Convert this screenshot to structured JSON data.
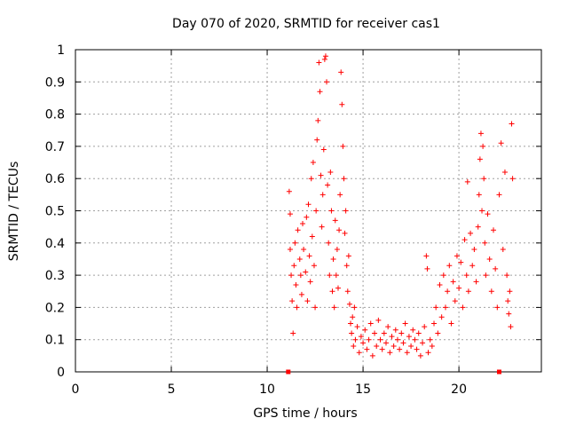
{
  "chart_data": {
    "type": "scatter",
    "title": "Day 070 of 2020, SRMTID for receiver cas1",
    "xlabel": "GPS time / hours",
    "ylabel": "SRMTID / TECUs",
    "xlim": [
      0,
      24.3
    ],
    "ylim": [
      0,
      1
    ],
    "x_ticks": [
      0,
      5,
      10,
      15,
      20
    ],
    "x_tick_labels": [
      "0",
      "5",
      "10",
      "15",
      "20"
    ],
    "y_ticks": [
      0,
      0.1,
      0.2,
      0.3,
      0.4,
      0.5,
      0.6,
      0.7,
      0.8,
      0.9,
      1
    ],
    "y_tick_labels": [
      "0",
      "0.1",
      "0.2",
      "0.3",
      "0.4",
      "0.5",
      "0.6",
      "0.7",
      "0.8",
      "0.9",
      "1"
    ],
    "grid": true,
    "marker": "plus",
    "color": "#ff0000",
    "series": [
      {
        "name": "cas1",
        "points": [
          [
            11.15,
            0.56
          ],
          [
            11.2,
            0.49
          ],
          [
            11.2,
            0.38
          ],
          [
            11.25,
            0.3
          ],
          [
            11.3,
            0.22
          ],
          [
            11.35,
            0.12
          ],
          [
            11.4,
            0.33
          ],
          [
            11.45,
            0.4
          ],
          [
            11.5,
            0.27
          ],
          [
            11.55,
            0.2
          ],
          [
            11.6,
            0.44
          ],
          [
            11.7,
            0.35
          ],
          [
            11.75,
            0.3
          ],
          [
            11.8,
            0.24
          ],
          [
            11.85,
            0.46
          ],
          [
            11.9,
            0.38
          ],
          [
            12.0,
            0.31
          ],
          [
            12.05,
            0.48
          ],
          [
            12.1,
            0.22
          ],
          [
            12.15,
            0.52
          ],
          [
            12.2,
            0.36
          ],
          [
            12.25,
            0.28
          ],
          [
            12.3,
            0.6
          ],
          [
            12.35,
            0.42
          ],
          [
            12.4,
            0.65
          ],
          [
            12.45,
            0.33
          ],
          [
            12.5,
            0.2
          ],
          [
            12.55,
            0.5
          ],
          [
            12.6,
            0.72
          ],
          [
            12.65,
            0.78
          ],
          [
            12.7,
            0.96
          ],
          [
            12.75,
            0.87
          ],
          [
            12.8,
            0.61
          ],
          [
            12.85,
            0.45
          ],
          [
            12.9,
            0.55
          ],
          [
            12.95,
            0.69
          ],
          [
            13.0,
            0.97
          ],
          [
            13.05,
            0.98
          ],
          [
            13.1,
            0.9
          ],
          [
            13.15,
            0.58
          ],
          [
            13.2,
            0.4
          ],
          [
            13.25,
            0.3
          ],
          [
            13.3,
            0.62
          ],
          [
            13.35,
            0.5
          ],
          [
            13.4,
            0.25
          ],
          [
            13.45,
            0.35
          ],
          [
            13.5,
            0.2
          ],
          [
            13.55,
            0.47
          ],
          [
            13.6,
            0.3
          ],
          [
            13.65,
            0.38
          ],
          [
            13.7,
            0.26
          ],
          [
            13.75,
            0.44
          ],
          [
            13.8,
            0.55
          ],
          [
            13.85,
            0.93
          ],
          [
            13.9,
            0.83
          ],
          [
            13.95,
            0.7
          ],
          [
            14.0,
            0.6
          ],
          [
            14.05,
            0.43
          ],
          [
            14.1,
            0.5
          ],
          [
            14.15,
            0.33
          ],
          [
            14.2,
            0.25
          ],
          [
            14.25,
            0.36
          ],
          [
            14.3,
            0.21
          ],
          [
            14.35,
            0.15
          ],
          [
            14.4,
            0.12
          ],
          [
            14.45,
            0.17
          ],
          [
            14.5,
            0.08
          ],
          [
            14.55,
            0.2
          ],
          [
            14.6,
            0.1
          ],
          [
            14.7,
            0.14
          ],
          [
            14.8,
            0.06
          ],
          [
            14.9,
            0.11
          ],
          [
            15.0,
            0.09
          ],
          [
            15.1,
            0.13
          ],
          [
            15.2,
            0.07
          ],
          [
            15.3,
            0.1
          ],
          [
            15.4,
            0.15
          ],
          [
            15.5,
            0.05
          ],
          [
            15.6,
            0.12
          ],
          [
            15.7,
            0.08
          ],
          [
            15.8,
            0.16
          ],
          [
            15.9,
            0.1
          ],
          [
            16.0,
            0.07
          ],
          [
            16.1,
            0.12
          ],
          [
            16.2,
            0.09
          ],
          [
            16.3,
            0.14
          ],
          [
            16.4,
            0.06
          ],
          [
            16.5,
            0.11
          ],
          [
            16.6,
            0.08
          ],
          [
            16.7,
            0.13
          ],
          [
            16.8,
            0.1
          ],
          [
            16.9,
            0.07
          ],
          [
            17.0,
            0.12
          ],
          [
            17.1,
            0.09
          ],
          [
            17.2,
            0.15
          ],
          [
            17.3,
            0.06
          ],
          [
            17.4,
            0.11
          ],
          [
            17.5,
            0.08
          ],
          [
            17.6,
            0.13
          ],
          [
            17.7,
            0.1
          ],
          [
            17.8,
            0.07
          ],
          [
            17.9,
            0.12
          ],
          [
            18.0,
            0.05
          ],
          [
            18.1,
            0.09
          ],
          [
            18.2,
            0.14
          ],
          [
            18.3,
            0.36
          ],
          [
            18.35,
            0.32
          ],
          [
            18.4,
            0.06
          ],
          [
            18.5,
            0.1
          ],
          [
            18.6,
            0.08
          ],
          [
            18.7,
            0.15
          ],
          [
            18.8,
            0.2
          ],
          [
            18.9,
            0.12
          ],
          [
            19.0,
            0.27
          ],
          [
            19.1,
            0.17
          ],
          [
            19.2,
            0.3
          ],
          [
            19.3,
            0.2
          ],
          [
            19.4,
            0.25
          ],
          [
            19.5,
            0.33
          ],
          [
            19.6,
            0.15
          ],
          [
            19.7,
            0.28
          ],
          [
            19.8,
            0.22
          ],
          [
            19.9,
            0.36
          ],
          [
            20.0,
            0.26
          ],
          [
            20.1,
            0.34
          ],
          [
            20.2,
            0.2
          ],
          [
            20.3,
            0.41
          ],
          [
            20.4,
            0.3
          ],
          [
            20.45,
            0.59
          ],
          [
            20.5,
            0.25
          ],
          [
            20.6,
            0.43
          ],
          [
            20.7,
            0.33
          ],
          [
            20.8,
            0.38
          ],
          [
            20.9,
            0.28
          ],
          [
            21.0,
            0.45
          ],
          [
            21.05,
            0.55
          ],
          [
            21.1,
            0.66
          ],
          [
            21.15,
            0.74
          ],
          [
            21.2,
            0.5
          ],
          [
            21.25,
            0.7
          ],
          [
            21.3,
            0.6
          ],
          [
            21.35,
            0.4
          ],
          [
            21.4,
            0.3
          ],
          [
            21.5,
            0.49
          ],
          [
            21.6,
            0.35
          ],
          [
            21.7,
            0.25
          ],
          [
            21.8,
            0.44
          ],
          [
            21.9,
            0.32
          ],
          [
            22.0,
            0.2
          ],
          [
            22.1,
            0.55
          ],
          [
            22.2,
            0.71
          ],
          [
            22.3,
            0.38
          ],
          [
            22.4,
            0.62
          ],
          [
            22.5,
            0.3
          ],
          [
            22.55,
            0.22
          ],
          [
            22.6,
            0.18
          ],
          [
            22.65,
            0.25
          ],
          [
            22.7,
            0.14
          ],
          [
            22.75,
            0.77
          ],
          [
            22.8,
            0.6
          ]
        ]
      },
      {
        "name": "cas1-outliers",
        "points": [
          [
            11.1,
            0
          ],
          [
            22.1,
            0
          ]
        ]
      }
    ]
  }
}
